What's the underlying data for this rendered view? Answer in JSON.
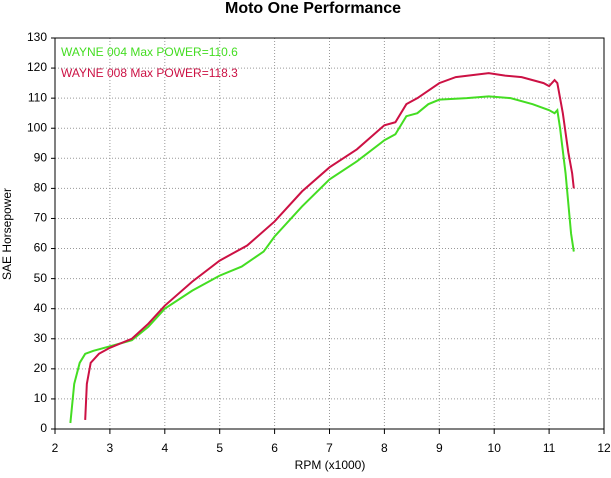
{
  "chart_data": {
    "type": "line",
    "title": "Moto One Performance",
    "x_label": "RPM (x1000)",
    "y_label": "SAE Horsepower",
    "xlim": [
      2,
      12
    ],
    "ylim": [
      0,
      130
    ],
    "xticks": [
      2,
      3,
      4,
      5,
      6,
      7,
      8,
      9,
      10,
      11,
      12
    ],
    "yticks": [
      0,
      10,
      20,
      30,
      40,
      50,
      60,
      70,
      80,
      90,
      100,
      110,
      120,
      130
    ],
    "grid": true,
    "legend": "upper left",
    "series": [
      {
        "name": "WAYNE 004  Max POWER=110.6",
        "color": "#44dd22",
        "x": [
          2.28,
          2.35,
          2.45,
          2.55,
          2.7,
          3.0,
          3.4,
          3.7,
          4.0,
          4.5,
          5.0,
          5.4,
          5.8,
          6.0,
          6.5,
          7.0,
          7.5,
          8.0,
          8.2,
          8.4,
          8.6,
          8.8,
          9.0,
          9.5,
          9.9,
          10.3,
          10.7,
          11.0,
          11.1,
          11.15,
          11.2,
          11.3,
          11.4,
          11.45
        ],
        "values": [
          2,
          15,
          22,
          25,
          26,
          27.5,
          29.5,
          34,
          40,
          46,
          51,
          54,
          59,
          64,
          74,
          83,
          89,
          96,
          98,
          104,
          105,
          108,
          109.5,
          110,
          110.6,
          110,
          108,
          106,
          105,
          106,
          100,
          85,
          65,
          59
        ]
      },
      {
        "name": "WAYNE 008  Max POWER=118.3",
        "color": "#cc1144",
        "x": [
          2.55,
          2.58,
          2.65,
          2.8,
          3.0,
          3.4,
          3.7,
          4.0,
          4.5,
          5.0,
          5.5,
          6.0,
          6.5,
          7.0,
          7.5,
          8.0,
          8.2,
          8.4,
          8.6,
          9.0,
          9.3,
          9.9,
          10.2,
          10.5,
          10.9,
          11.0,
          11.1,
          11.15,
          11.25,
          11.35,
          11.42,
          11.45
        ],
        "values": [
          3,
          15,
          22,
          25,
          27,
          30,
          35,
          41,
          49,
          56,
          61,
          69,
          79,
          87,
          93,
          101,
          102,
          108,
          110,
          115,
          117,
          118.3,
          117.5,
          117,
          115,
          114,
          116,
          115,
          105,
          92,
          85,
          80
        ]
      }
    ]
  }
}
